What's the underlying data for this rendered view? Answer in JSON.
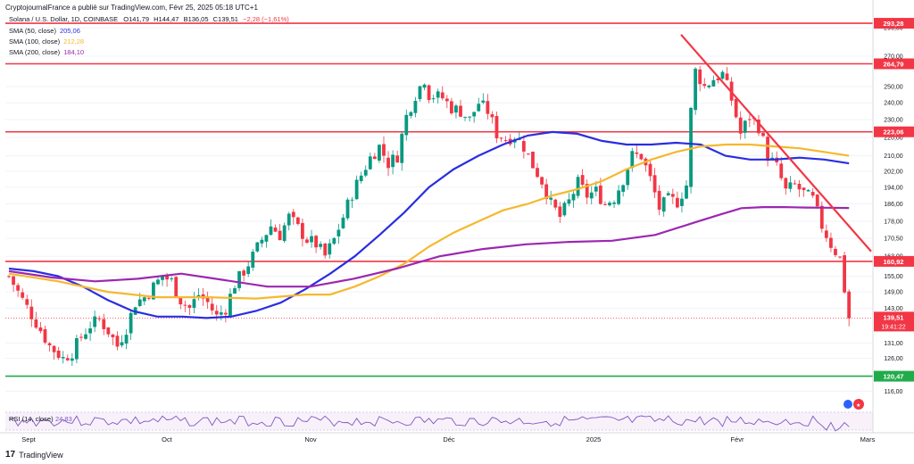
{
  "header": {
    "published_by": "CryptojournalFrance a publié sur TradingView.com, Févr 25, 2025 05:18 UTC+1",
    "symbol": "Solana / U.S. Dollar, 1D, COINBASE",
    "open": "O141,79",
    "high": "H144,47",
    "low": "B136,05",
    "close": "C139,51",
    "change": "−2,28 (−1,61%)"
  },
  "indicators": [
    {
      "label": "SMA (50, close)",
      "value": "205,06",
      "color": "#2a2ee0"
    },
    {
      "label": "SMA (100, close)",
      "value": "212,28",
      "color": "#f5b82e"
    },
    {
      "label": "SMA (200, close)",
      "value": "184,10",
      "color": "#9c27b0"
    }
  ],
  "currency": "USD",
  "brand": "TradingView",
  "rsi": {
    "label": "RSI (14, close)",
    "value": "24,83"
  },
  "colors": {
    "up": "#089981",
    "down": "#f23645",
    "resistance": "#f23645",
    "support": "#22ab4a",
    "trendline": "#f23645"
  },
  "chart_data": {
    "type": "candlestick",
    "y_axis": {
      "scale": "log",
      "range": [
        111,
        300
      ],
      "ticks": [
        {
          "v": 290,
          "t": "290,00"
        },
        {
          "v": 270,
          "t": "270,00"
        },
        {
          "v": 250,
          "t": "250,00"
        },
        {
          "v": 240,
          "t": "240,00"
        },
        {
          "v": 230,
          "t": "230,00"
        },
        {
          "v": 220,
          "t": "220,00"
        },
        {
          "v": 210,
          "t": "210,00"
        },
        {
          "v": 202,
          "t": "202,00"
        },
        {
          "v": 194,
          "t": "194,00"
        },
        {
          "v": 186,
          "t": "186,00"
        },
        {
          "v": 178,
          "t": "178,00"
        },
        {
          "v": 170.5,
          "t": "170,50"
        },
        {
          "v": 163,
          "t": "163,00"
        },
        {
          "v": 155,
          "t": "155,00"
        },
        {
          "v": 149,
          "t": "149,00"
        },
        {
          "v": 143,
          "t": "143,00"
        },
        {
          "v": 131,
          "t": "131,00"
        },
        {
          "v": 126,
          "t": "126,00"
        },
        {
          "v": 116,
          "t": "116,00"
        }
      ]
    },
    "x_axis": {
      "labels": [
        "Sept",
        "Oct",
        "Nov",
        "Déc",
        "2025",
        "Févr",
        "Mars"
      ]
    },
    "horizontal_levels": [
      {
        "value": 293.28,
        "label": "293,28",
        "kind": "resistance"
      },
      {
        "value": 264.79,
        "label": "264,79",
        "kind": "resistance"
      },
      {
        "value": 223.06,
        "label": "223,06",
        "kind": "resistance"
      },
      {
        "value": 160.92,
        "label": "160,92",
        "kind": "resistance"
      },
      {
        "value": 120.47,
        "label": "120,47",
        "kind": "support"
      }
    ],
    "last_price": {
      "value": 139.51,
      "label": "139,51",
      "countdown": "19:41:22"
    },
    "trendline": {
      "from_price": 285,
      "to_price": 165,
      "kind": "descending"
    },
    "series": [
      {
        "name": "SMA (50, close)",
        "points": [
          [
            0,
            158
          ],
          [
            2,
            157
          ],
          [
            4,
            155
          ],
          [
            6,
            151
          ],
          [
            8,
            146
          ],
          [
            10,
            142
          ],
          [
            12,
            140
          ],
          [
            14,
            140
          ],
          [
            16,
            139.5
          ],
          [
            18,
            140
          ],
          [
            20,
            142
          ],
          [
            22,
            145
          ],
          [
            24,
            150
          ],
          [
            26,
            156
          ],
          [
            28,
            163
          ],
          [
            30,
            172
          ],
          [
            32,
            182
          ],
          [
            34,
            194
          ],
          [
            36,
            203
          ],
          [
            38,
            210
          ],
          [
            40,
            216
          ],
          [
            42,
            221
          ],
          [
            44,
            223
          ],
          [
            46,
            222
          ],
          [
            48,
            218
          ],
          [
            50,
            216
          ],
          [
            52,
            216
          ],
          [
            54,
            217
          ],
          [
            56,
            216
          ],
          [
            58,
            210
          ],
          [
            60,
            208
          ],
          [
            62,
            208
          ],
          [
            64,
            209
          ],
          [
            66,
            208
          ],
          [
            68,
            206
          ]
        ]
      },
      {
        "name": "SMA (100, close)",
        "points": [
          [
            0,
            156
          ],
          [
            4,
            153
          ],
          [
            8,
            149
          ],
          [
            12,
            147
          ],
          [
            16,
            147
          ],
          [
            20,
            146.5
          ],
          [
            24,
            148
          ],
          [
            26,
            148
          ],
          [
            28,
            151
          ],
          [
            30,
            155
          ],
          [
            32,
            160
          ],
          [
            34,
            167
          ],
          [
            36,
            173
          ],
          [
            38,
            178
          ],
          [
            40,
            183
          ],
          [
            42,
            186
          ],
          [
            44,
            190
          ],
          [
            46,
            193
          ],
          [
            48,
            197
          ],
          [
            50,
            203
          ],
          [
            52,
            208
          ],
          [
            54,
            212
          ],
          [
            56,
            215
          ],
          [
            58,
            216
          ],
          [
            60,
            216
          ],
          [
            62,
            215
          ],
          [
            64,
            214
          ],
          [
            66,
            212
          ],
          [
            68,
            210
          ]
        ]
      },
      {
        "name": "SMA (200, close)",
        "points": [
          [
            0,
            157
          ],
          [
            4,
            154.5
          ],
          [
            8,
            153
          ],
          [
            12,
            154
          ],
          [
            16,
            156
          ],
          [
            20,
            153.5
          ],
          [
            24,
            151
          ],
          [
            28,
            151
          ],
          [
            32,
            154
          ],
          [
            36,
            158
          ],
          [
            40,
            163
          ],
          [
            44,
            166
          ],
          [
            48,
            168
          ],
          [
            52,
            169
          ],
          [
            56,
            169.5
          ],
          [
            60,
            172
          ],
          [
            64,
            178
          ],
          [
            66,
            181
          ],
          [
            68,
            184
          ],
          [
            70,
            184.5
          ],
          [
            72,
            184.5
          ],
          [
            74,
            184.3
          ],
          [
            76,
            184.2
          ],
          [
            78,
            184.1
          ]
        ]
      }
    ],
    "candles_note": "daily OHLC candles, values estimated from the axis"
  }
}
